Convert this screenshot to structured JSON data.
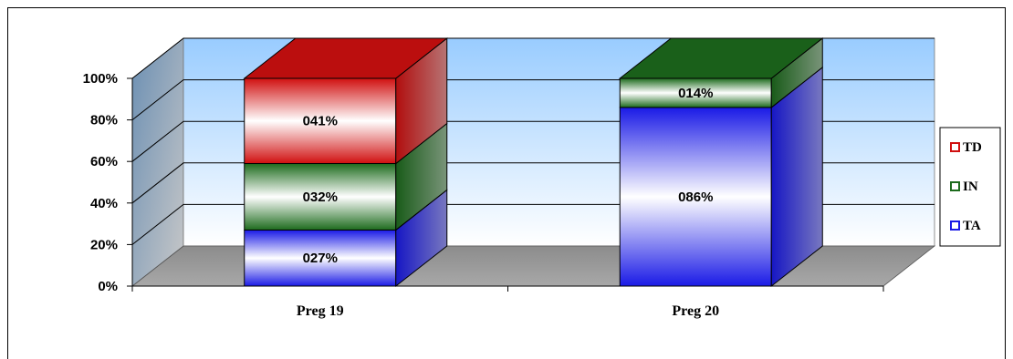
{
  "chart_data": {
    "type": "bar",
    "stacked": true,
    "percent_stacked": true,
    "three_d": true,
    "categories": [
      "Preg 19",
      "Preg 20"
    ],
    "series": [
      {
        "name": "TA",
        "values": [
          27,
          86
        ],
        "labels": [
          "027%",
          "086%"
        ]
      },
      {
        "name": "IN",
        "values": [
          32,
          14
        ],
        "labels": [
          "032%",
          "014%"
        ]
      },
      {
        "name": "TD",
        "values": [
          41,
          0
        ],
        "labels": [
          "041%",
          ""
        ]
      }
    ],
    "y_ticks": [
      "0%",
      "20%",
      "40%",
      "60%",
      "80%",
      "100%"
    ],
    "ylim": [
      0,
      100
    ],
    "grid": true,
    "legend": {
      "position": "right",
      "order": [
        "TD",
        "IN",
        "TA"
      ]
    },
    "colors": {
      "TA": "#1a1ae6",
      "IN": "#1d6b1d",
      "TD": "#d01010",
      "wall_top": "#99ccff",
      "floor": "#8c8c8c"
    }
  }
}
